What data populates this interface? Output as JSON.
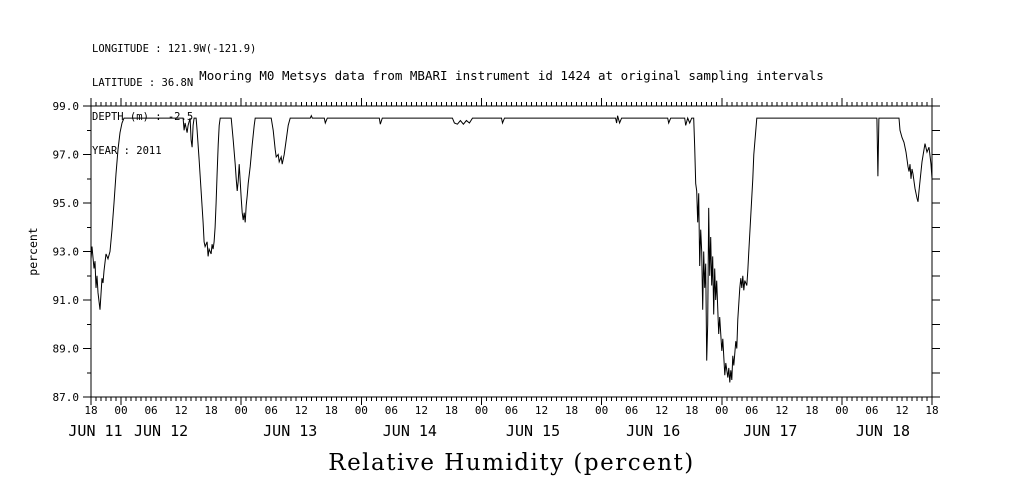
{
  "page": {
    "background": "#ffffff",
    "foreground": "#000000"
  },
  "metadata_block": {
    "lines": [
      "LONGITUDE : 121.9W(-121.9)",
      "LATITUDE : 36.8N",
      "DEPTH (m) : -2.5",
      "YEAR : 2011"
    ]
  },
  "title": "Mooring M0 Metsys data from MBARI instrument id 1424 at original sampling intervals",
  "caption": "Relative Humidity (percent)",
  "chart_data": {
    "type": "line",
    "title": "Mooring M0 Metsys data from MBARI instrument id 1424 at original sampling intervals",
    "xlabel": "Relative Humidity (percent)",
    "ylabel": "percent",
    "ylim": [
      87.0,
      99.0
    ],
    "grid": false,
    "legend": "none",
    "x_axis": {
      "range_hours": 168,
      "start_time": "JUN 11 18:00",
      "end_time": "JUN 18 18:00",
      "minor_tick_every_hours": 1,
      "major_tick_every_hours": 24,
      "label_every_hours": 6,
      "hour_labels": [
        "18",
        "00",
        "06",
        "12",
        "18",
        "00",
        "06",
        "12",
        "18",
        "00",
        "06",
        "12",
        "18",
        "00",
        "06",
        "12",
        "18",
        "00",
        "06",
        "12",
        "18",
        "00",
        "06",
        "12",
        "18",
        "00",
        "06",
        "12",
        "18"
      ],
      "day_labels": [
        {
          "text": "JUN 11",
          "hour": 0.9
        },
        {
          "text": "JUN 12",
          "hour": 14.0
        },
        {
          "text": "JUN 13",
          "hour": 39.8
        },
        {
          "text": "JUN 14",
          "hour": 63.7
        },
        {
          "text": "JUN 15",
          "hour": 88.3
        },
        {
          "text": "JUN 16",
          "hour": 112.3
        },
        {
          "text": "JUN 17",
          "hour": 135.7
        },
        {
          "text": "JUN 18",
          "hour": 158.2
        }
      ]
    },
    "y_axis": {
      "major_ticks": [
        {
          "value": 99,
          "label": "99.0"
        },
        {
          "value": 97,
          "label": "97.0"
        },
        {
          "value": 95,
          "label": "95.0"
        },
        {
          "value": 93,
          "label": "93.0"
        },
        {
          "value": 91,
          "label": "91.0"
        },
        {
          "value": 89,
          "label": "89.0"
        },
        {
          "value": 87,
          "label": "87.0"
        }
      ],
      "minor_step": 1
    },
    "series": [
      {
        "name": "relative humidity",
        "color": "#000000",
        "points": [
          [
            0,
            92.7
          ],
          [
            0.2,
            93.2
          ],
          [
            0.6,
            92.3
          ],
          [
            0.8,
            92.6
          ],
          [
            1.0,
            91.5
          ],
          [
            1.2,
            92.0
          ],
          [
            1.4,
            91.3
          ],
          [
            1.8,
            90.6
          ],
          [
            2.2,
            91.9
          ],
          [
            2.4,
            91.7
          ],
          [
            2.6,
            92.2
          ],
          [
            3.0,
            92.9
          ],
          [
            3.4,
            92.7
          ],
          [
            3.8,
            93.0
          ],
          [
            4.2,
            93.9
          ],
          [
            4.6,
            95.0
          ],
          [
            5.0,
            96.2
          ],
          [
            5.4,
            97.2
          ],
          [
            5.8,
            97.9
          ],
          [
            6.2,
            98.3
          ],
          [
            6.6,
            98.5
          ],
          [
            18.4,
            98.5
          ],
          [
            18.6,
            98.0
          ],
          [
            18.8,
            98.3
          ],
          [
            19.2,
            97.9
          ],
          [
            19.4,
            98.2
          ],
          [
            19.8,
            98.5
          ],
          [
            20.0,
            97.6
          ],
          [
            20.2,
            97.3
          ],
          [
            20.4,
            98.2
          ],
          [
            20.6,
            98.5
          ],
          [
            21.0,
            98.5
          ],
          [
            21.2,
            98.0
          ],
          [
            21.6,
            96.8
          ],
          [
            22.0,
            95.5
          ],
          [
            22.4,
            94.2
          ],
          [
            22.6,
            93.4
          ],
          [
            22.8,
            93.2
          ],
          [
            23.2,
            93.4
          ],
          [
            23.4,
            92.8
          ],
          [
            23.6,
            93.1
          ],
          [
            24.0,
            92.9
          ],
          [
            24.2,
            93.3
          ],
          [
            24.4,
            93.1
          ],
          [
            24.6,
            93.4
          ],
          [
            24.8,
            94.0
          ],
          [
            25.0,
            95.0
          ],
          [
            25.2,
            96.2
          ],
          [
            25.4,
            97.4
          ],
          [
            25.6,
            98.2
          ],
          [
            25.8,
            98.5
          ],
          [
            28.0,
            98.5
          ],
          [
            28.4,
            97.6
          ],
          [
            28.8,
            96.6
          ],
          [
            29.0,
            96.0
          ],
          [
            29.2,
            95.5
          ],
          [
            29.4,
            95.9
          ],
          [
            29.6,
            96.6
          ],
          [
            29.8,
            95.9
          ],
          [
            30.0,
            95.2
          ],
          [
            30.2,
            94.6
          ],
          [
            30.4,
            94.3
          ],
          [
            30.6,
            94.6
          ],
          [
            30.8,
            94.2
          ],
          [
            31.0,
            94.9
          ],
          [
            31.2,
            95.3
          ],
          [
            31.4,
            95.8
          ],
          [
            31.8,
            96.5
          ],
          [
            32.2,
            97.4
          ],
          [
            32.6,
            98.2
          ],
          [
            32.8,
            98.5
          ],
          [
            36.0,
            98.5
          ],
          [
            36.4,
            98.0
          ],
          [
            36.8,
            97.2
          ],
          [
            37.0,
            96.9
          ],
          [
            37.4,
            97.0
          ],
          [
            37.6,
            96.7
          ],
          [
            38.0,
            96.9
          ],
          [
            38.2,
            96.6
          ],
          [
            38.6,
            97.0
          ],
          [
            39.0,
            97.6
          ],
          [
            39.4,
            98.2
          ],
          [
            39.8,
            98.5
          ],
          [
            43.8,
            98.5
          ],
          [
            44.0,
            98.6
          ],
          [
            44.2,
            98.5
          ],
          [
            46.6,
            98.5
          ],
          [
            46.8,
            98.3
          ],
          [
            47.2,
            98.5
          ],
          [
            57.6,
            98.5
          ],
          [
            57.8,
            98.25
          ],
          [
            58.2,
            98.5
          ],
          [
            72.2,
            98.5
          ],
          [
            72.6,
            98.3
          ],
          [
            73.2,
            98.25
          ],
          [
            73.8,
            98.4
          ],
          [
            74.4,
            98.25
          ],
          [
            75.0,
            98.4
          ],
          [
            75.6,
            98.3
          ],
          [
            76.2,
            98.5
          ],
          [
            82.0,
            98.5
          ],
          [
            82.2,
            98.3
          ],
          [
            82.6,
            98.5
          ],
          [
            104.8,
            98.5
          ],
          [
            105.0,
            98.3
          ],
          [
            105.2,
            98.6
          ],
          [
            105.6,
            98.3
          ],
          [
            106.0,
            98.5
          ],
          [
            115.2,
            98.5
          ],
          [
            115.4,
            98.3
          ],
          [
            115.8,
            98.5
          ],
          [
            118.6,
            98.5
          ],
          [
            118.8,
            98.2
          ],
          [
            119.2,
            98.5
          ],
          [
            119.6,
            98.3
          ],
          [
            120.0,
            98.5
          ],
          [
            120.4,
            98.5
          ],
          [
            120.6,
            97.3
          ],
          [
            120.8,
            95.8
          ],
          [
            121.0,
            95.5
          ],
          [
            121.2,
            94.2
          ],
          [
            121.4,
            95.4
          ],
          [
            121.6,
            92.4
          ],
          [
            121.8,
            93.9
          ],
          [
            122.0,
            93.0
          ],
          [
            122.2,
            90.6
          ],
          [
            122.4,
            93.0
          ],
          [
            122.6,
            91.5
          ],
          [
            122.8,
            92.5
          ],
          [
            123.0,
            88.5
          ],
          [
            123.2,
            90.0
          ],
          [
            123.4,
            94.8
          ],
          [
            123.6,
            92.0
          ],
          [
            123.8,
            93.6
          ],
          [
            124.0,
            91.6
          ],
          [
            124.2,
            92.8
          ],
          [
            124.4,
            90.4
          ],
          [
            124.6,
            92.3
          ],
          [
            124.8,
            91.0
          ],
          [
            125.0,
            91.8
          ],
          [
            125.4,
            89.6
          ],
          [
            125.6,
            90.3
          ],
          [
            126.0,
            88.9
          ],
          [
            126.2,
            89.4
          ],
          [
            126.6,
            87.9
          ],
          [
            126.8,
            88.4
          ],
          [
            127.2,
            87.8
          ],
          [
            127.4,
            88.2
          ],
          [
            127.6,
            87.6
          ],
          [
            127.8,
            88.1
          ],
          [
            128.0,
            87.7
          ],
          [
            128.2,
            88.7
          ],
          [
            128.4,
            88.3
          ],
          [
            128.8,
            89.3
          ],
          [
            129.0,
            89.0
          ],
          [
            129.2,
            90.2
          ],
          [
            129.6,
            91.5
          ],
          [
            129.8,
            91.9
          ],
          [
            130.0,
            91.5
          ],
          [
            130.2,
            92.0
          ],
          [
            130.4,
            91.4
          ],
          [
            130.6,
            91.8
          ],
          [
            131.0,
            91.6
          ],
          [
            131.2,
            92.2
          ],
          [
            131.4,
            93.0
          ],
          [
            131.8,
            94.5
          ],
          [
            132.2,
            96.0
          ],
          [
            132.4,
            97.0
          ],
          [
            132.8,
            98.0
          ],
          [
            133.0,
            98.5
          ],
          [
            157.0,
            98.5
          ],
          [
            157.2,
            96.1
          ],
          [
            157.4,
            98.5
          ],
          [
            161.4,
            98.5
          ],
          [
            161.6,
            98.0
          ],
          [
            162.0,
            97.7
          ],
          [
            162.4,
            97.5
          ],
          [
            162.8,
            97.1
          ],
          [
            163.2,
            96.5
          ],
          [
            163.4,
            96.3
          ],
          [
            163.6,
            96.6
          ],
          [
            163.8,
            96.0
          ],
          [
            164.0,
            96.4
          ],
          [
            164.2,
            96.2
          ],
          [
            164.6,
            95.6
          ],
          [
            164.8,
            95.4
          ],
          [
            165.0,
            95.2
          ],
          [
            165.2,
            95.05
          ],
          [
            165.4,
            95.5
          ],
          [
            165.6,
            95.9
          ],
          [
            165.8,
            96.3
          ],
          [
            166.0,
            96.7
          ],
          [
            166.4,
            97.2
          ],
          [
            166.6,
            97.45
          ],
          [
            167.0,
            97.1
          ],
          [
            167.4,
            97.3
          ],
          [
            167.8,
            96.6
          ],
          [
            168.0,
            96.0
          ]
        ]
      }
    ]
  }
}
